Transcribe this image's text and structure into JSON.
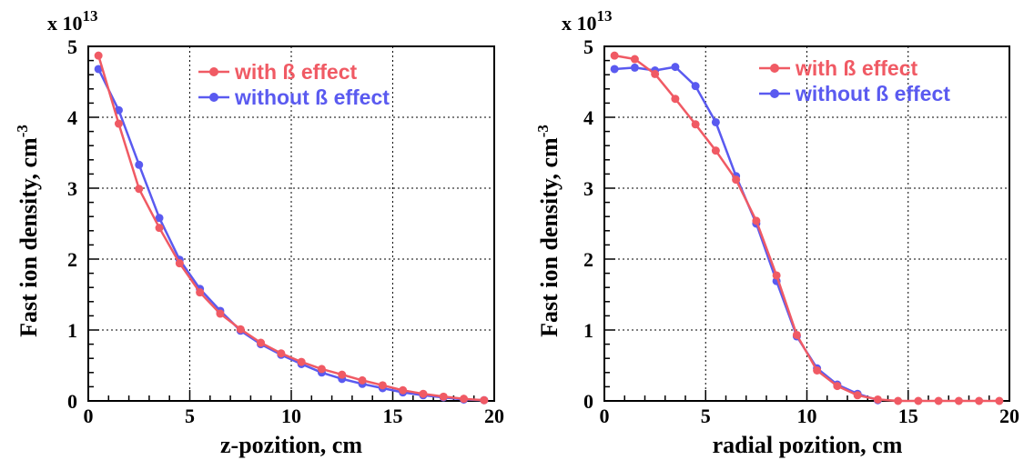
{
  "colors": {
    "with_beta": "#f05a64",
    "without_beta": "#5a5af0",
    "grid": "#000000",
    "axis": "#000000"
  },
  "chart_data": [
    {
      "type": "line",
      "xlabel": "z-pozition, cm",
      "ylabel": "Fast ion density, cm",
      "ylabel_exponent": "-3",
      "scale_prefix": "x 10",
      "scale_exponent": "13",
      "xlim": [
        0,
        20
      ],
      "ylim": [
        0,
        5
      ],
      "x_ticks": [
        0,
        5,
        10,
        15,
        20
      ],
      "x_tick_labels": [
        "0",
        "5",
        "10",
        "15",
        "20"
      ],
      "y_ticks": [
        0,
        1,
        2,
        3,
        4,
        5
      ],
      "y_tick_labels": [
        "0",
        "1",
        "2",
        "3",
        "4",
        "5"
      ],
      "grid": true,
      "legend_position": "top-right",
      "series": [
        {
          "name": "with ß effect",
          "color": "#f05a64",
          "x": [
            0.5,
            1.5,
            2.5,
            3.5,
            4.5,
            5.5,
            6.5,
            7.5,
            8.5,
            9.5,
            10.5,
            11.5,
            12.5,
            13.5,
            14.5,
            15.5,
            16.5,
            17.5,
            18.5,
            19.5
          ],
          "y": [
            4.87,
            3.91,
            2.99,
            2.44,
            1.94,
            1.53,
            1.23,
            1.01,
            0.82,
            0.67,
            0.55,
            0.45,
            0.37,
            0.29,
            0.22,
            0.15,
            0.1,
            0.06,
            0.03,
            0.01
          ]
        },
        {
          "name": "without ß effect",
          "color": "#5a5af0",
          "x": [
            0.5,
            1.5,
            2.5,
            3.5,
            4.5,
            5.5,
            6.5,
            7.5,
            8.5,
            9.5,
            10.5,
            11.5,
            12.5,
            13.5,
            14.5,
            15.5,
            16.5,
            17.5,
            18.5,
            19.5
          ],
          "y": [
            4.68,
            4.1,
            3.33,
            2.58,
            1.99,
            1.58,
            1.27,
            0.99,
            0.8,
            0.65,
            0.52,
            0.4,
            0.31,
            0.24,
            0.18,
            0.12,
            0.08,
            0.05,
            0.02,
            0.01
          ]
        }
      ]
    },
    {
      "type": "line",
      "xlabel": "radial pozition, cm",
      "ylabel": "Fast ion density, cm",
      "ylabel_exponent": "-3",
      "scale_prefix": "x 10",
      "scale_exponent": "13",
      "xlim": [
        0,
        20
      ],
      "ylim": [
        0,
        5
      ],
      "x_ticks": [
        0,
        5,
        10,
        15,
        20
      ],
      "x_tick_labels": [
        "0",
        "5",
        "10",
        "15",
        "20"
      ],
      "y_ticks": [
        0,
        1,
        2,
        3,
        4,
        5
      ],
      "y_tick_labels": [
        "0",
        "1",
        "2",
        "3",
        "4",
        "5"
      ],
      "grid": true,
      "legend_position": "top-right",
      "series": [
        {
          "name": "with ß effect",
          "color": "#f05a64",
          "x": [
            0.5,
            1.5,
            2.5,
            3.5,
            4.5,
            5.5,
            6.5,
            7.5,
            8.5,
            9.5,
            10.5,
            11.5,
            12.5,
            13.5,
            14.5,
            15.5,
            16.5,
            17.5,
            18.5,
            19.5
          ],
          "y": [
            4.87,
            4.82,
            4.61,
            4.26,
            3.9,
            3.53,
            3.12,
            2.54,
            1.77,
            0.93,
            0.43,
            0.21,
            0.08,
            0.02,
            0.0,
            0.0,
            0.0,
            0.0,
            0.0,
            0.0
          ]
        },
        {
          "name": "without ß effect",
          "color": "#5a5af0",
          "x": [
            0.5,
            1.5,
            2.5,
            3.5,
            4.5,
            5.5,
            6.5,
            7.5,
            8.5,
            9.5,
            10.5,
            11.5,
            12.5,
            13.5
          ],
          "y": [
            4.68,
            4.7,
            4.66,
            4.71,
            4.44,
            3.93,
            3.17,
            2.5,
            1.69,
            0.91,
            0.46,
            0.23,
            0.1,
            0.01
          ]
        }
      ]
    }
  ]
}
